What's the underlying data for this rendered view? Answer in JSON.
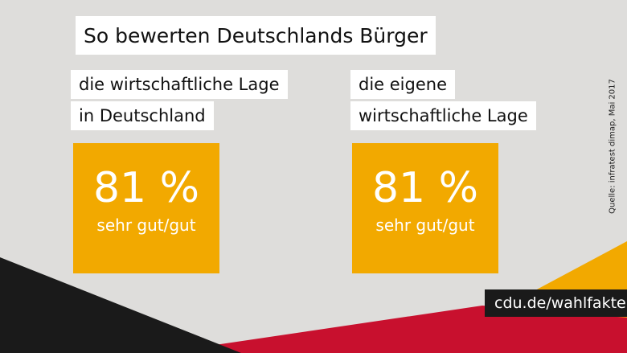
{
  "title": "So bewerten Deutschlands Bürger",
  "left": {
    "label_line1": "die wirtschaftliche Lage",
    "label_line2": "in Deutschland",
    "value": "81 %",
    "caption": "sehr gut/gut"
  },
  "right": {
    "label_line1": "die eigene",
    "label_line2": "wirtschaftliche Lage",
    "value": "81 %",
    "caption": "sehr gut/gut"
  },
  "source": "Quelle: infratest dimap, Mai 2017",
  "url": "cdu.de/wahlfakten",
  "colors": {
    "background": "#dedddb",
    "accent_orange": "#f2a900",
    "flag_black": "#1a1a1a",
    "flag_red": "#c8102e",
    "flag_gold": "#f2a900"
  }
}
